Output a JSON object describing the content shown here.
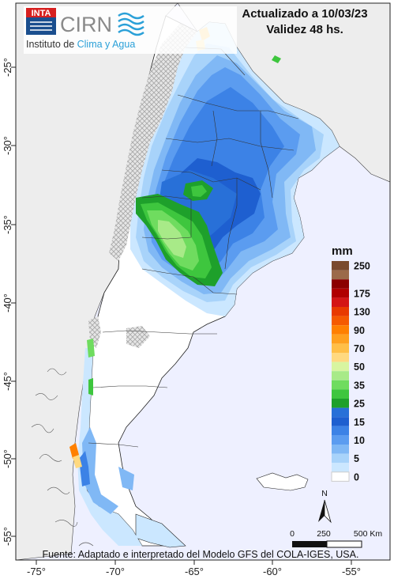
{
  "header": {
    "updated": "Actualizado a 10/03/23",
    "validity": "Validez 48 hs."
  },
  "logo": {
    "inta": "INTA",
    "cirn": "CIRN",
    "institute_prefix": "Instituto de ",
    "institute_accent": "Clima y Agua"
  },
  "axes": {
    "x_ticks": [
      "-75°",
      "-70°",
      "-65°",
      "-60°",
      "-55°"
    ],
    "y_ticks": [
      "-25°",
      "-30°",
      "-35°",
      "-40°",
      "-45°",
      "-50°",
      "-55°"
    ]
  },
  "legend": {
    "unit": "mm",
    "classes": [
      {
        "label": "250",
        "color": "#7a4a2e"
      },
      {
        "label": "",
        "color": "#9b6a4a"
      },
      {
        "label": "",
        "color": "#8b0000"
      },
      {
        "label": "175",
        "color": "#b00000"
      },
      {
        "label": "",
        "color": "#d41515"
      },
      {
        "label": "130",
        "color": "#e83a00"
      },
      {
        "label": "",
        "color": "#f55a00"
      },
      {
        "label": "90",
        "color": "#ff8000"
      },
      {
        "label": "",
        "color": "#ffa01e"
      },
      {
        "label": "70",
        "color": "#ffbf47"
      },
      {
        "label": "",
        "color": "#ffd980"
      },
      {
        "label": "50",
        "color": "#d8f5a0"
      },
      {
        "label": "",
        "color": "#a8ea88"
      },
      {
        "label": "35",
        "color": "#6fdc5f"
      },
      {
        "label": "",
        "color": "#3ec63e"
      },
      {
        "label": "25",
        "color": "#1ea02b"
      },
      {
        "label": "",
        "color": "#2870d8"
      },
      {
        "label": "15",
        "color": "#1e5fd0"
      },
      {
        "label": "",
        "color": "#3c82e6"
      },
      {
        "label": "10",
        "color": "#5b9cf0"
      },
      {
        "label": "",
        "color": "#80b8f5"
      },
      {
        "label": "5",
        "color": "#a8d3fa"
      },
      {
        "label": "",
        "color": "#cbe7ff"
      },
      {
        "label": "0",
        "color": "#ffffff"
      }
    ]
  },
  "scale_bar": {
    "north": "N",
    "labels": [
      "0",
      "250",
      "500 Km"
    ]
  },
  "source": "Fuente: Adaptado e interpretado del Modelo GFS del COLA-IGES, USA.",
  "colors": {
    "ocean": "#eef0ff",
    "land_neighbor": "#ededed",
    "argentina_base": "#ffffff",
    "hatch": "#bdbdbd"
  }
}
